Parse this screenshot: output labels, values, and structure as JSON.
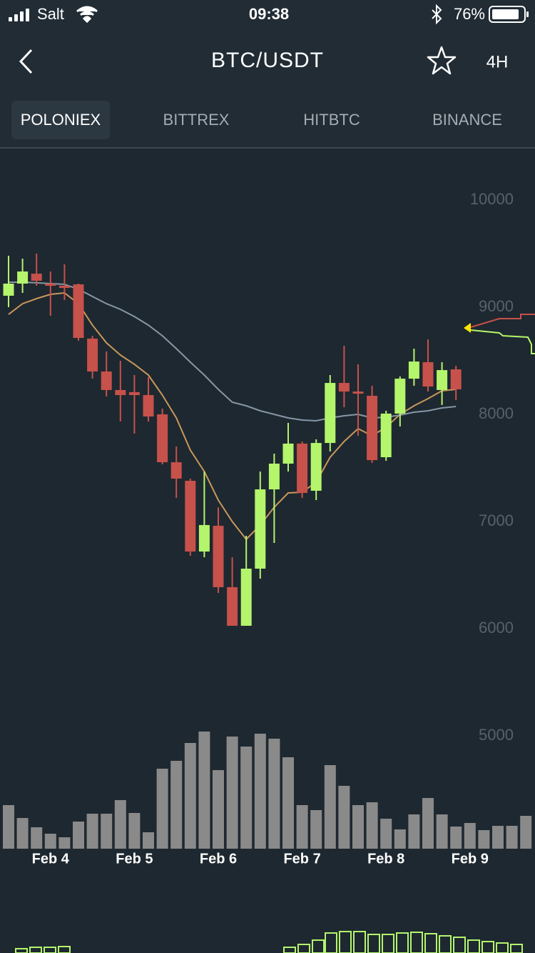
{
  "status_bar": {
    "carrier": "Salt",
    "time": "09:38",
    "battery": "76%"
  },
  "nav": {
    "title": "BTC/USDT",
    "interval": "4H"
  },
  "tabs": [
    "POLONIEX",
    "BITTREX",
    "HITBTC",
    "BINANCE"
  ],
  "chart_data": {
    "type": "candlestick",
    "categories": [
      null,
      null,
      null,
      "Feb 4",
      null,
      null,
      null,
      null,
      null,
      "Feb 5",
      null,
      null,
      null,
      null,
      null,
      "Feb 6",
      null,
      null,
      null,
      null,
      null,
      "Feb 7",
      null,
      null,
      null,
      null,
      null,
      "Feb 8",
      null,
      null,
      null,
      null,
      null,
      "Feb 9",
      null,
      null,
      null,
      null
    ],
    "open": [
      9107,
      9220,
      9313,
      9220,
      9200,
      9213,
      8707,
      8400,
      8227,
      8207,
      8180,
      8000,
      7553,
      7380,
      6720,
      6960,
      6387,
      6027,
      6560,
      7300,
      7540,
      7727,
      7287,
      7733,
      8293,
      8213,
      8173,
      7600,
      8007,
      8333,
      8487,
      8227,
      8420,
      null,
      null,
      null,
      null,
      null
    ],
    "high": [
      9480,
      9453,
      9500,
      9333,
      9400,
      9220,
      8733,
      8587,
      8500,
      8367,
      8347,
      8053,
      7700,
      7400,
      7467,
      7133,
      6667,
      6867,
      7467,
      7633,
      7920,
      7747,
      7767,
      8367,
      8640,
      8467,
      8267,
      8033,
      8353,
      8613,
      8700,
      8487,
      8453,
      null,
      null,
      null,
      null,
      null
    ],
    "low": [
      9000,
      9133,
      9200,
      8920,
      9067,
      8687,
      8333,
      8167,
      7933,
      7820,
      7933,
      7533,
      7220,
      6680,
      6667,
      6333,
      6027,
      6027,
      6467,
      6800,
      7467,
      7220,
      7200,
      7653,
      8067,
      7800,
      7547,
      7567,
      7887,
      8267,
      8213,
      8087,
      8133,
      null,
      null,
      null,
      null,
      null
    ],
    "close": [
      9220,
      9333,
      9247,
      9200,
      9180,
      8713,
      8400,
      8227,
      8180,
      8180,
      7980,
      7553,
      7400,
      6720,
      6967,
      6387,
      6027,
      6560,
      7300,
      7540,
      7727,
      7267,
      7733,
      8293,
      8213,
      8193,
      7573,
      8007,
      8333,
      8493,
      8260,
      8413,
      8233,
      null,
      null,
      null,
      null,
      null
    ],
    "up_color": "#b4f56c",
    "down_color": "#c7514b",
    "moving_averages": [
      {
        "color": "#c9975a",
        "values": [
          8933,
          9033,
          9080,
          9120,
          9133,
          9033,
          8833,
          8667,
          8553,
          8467,
          8367,
          8180,
          7967,
          7667,
          7467,
          7200,
          7000,
          6833,
          6967,
          7133,
          7267,
          7273,
          7367,
          7600,
          7747,
          7867,
          7800,
          7880,
          8000,
          8080,
          8147,
          8220,
          8233,
          null,
          null,
          null,
          null,
          null
        ]
      },
      {
        "color": "#8597a6",
        "values": [
          9233,
          9233,
          9227,
          9220,
          9213,
          9167,
          9100,
          9033,
          8980,
          8913,
          8833,
          8733,
          8613,
          8487,
          8367,
          8233,
          8113,
          8080,
          8033,
          8000,
          7967,
          7947,
          7940,
          7967,
          7987,
          8000,
          7967,
          7973,
          7993,
          8020,
          8033,
          8060,
          8073,
          null,
          null,
          null,
          null,
          null
        ]
      }
    ],
    "volume": {
      "color": "#8a8a8a",
      "values": [
        61,
        43,
        30,
        21,
        16,
        38,
        49,
        49,
        68,
        50,
        23,
        112,
        123,
        148,
        164,
        110,
        157,
        143,
        161,
        154,
        128,
        61,
        54,
        117,
        88,
        61,
        65,
        42,
        27,
        48,
        71,
        48,
        31,
        36,
        26,
        32,
        32,
        46
      ]
    },
    "ylim": [
      5000,
      10000
    ],
    "yticks": [
      5000,
      6000,
      7000,
      8000,
      9000,
      10000
    ]
  }
}
